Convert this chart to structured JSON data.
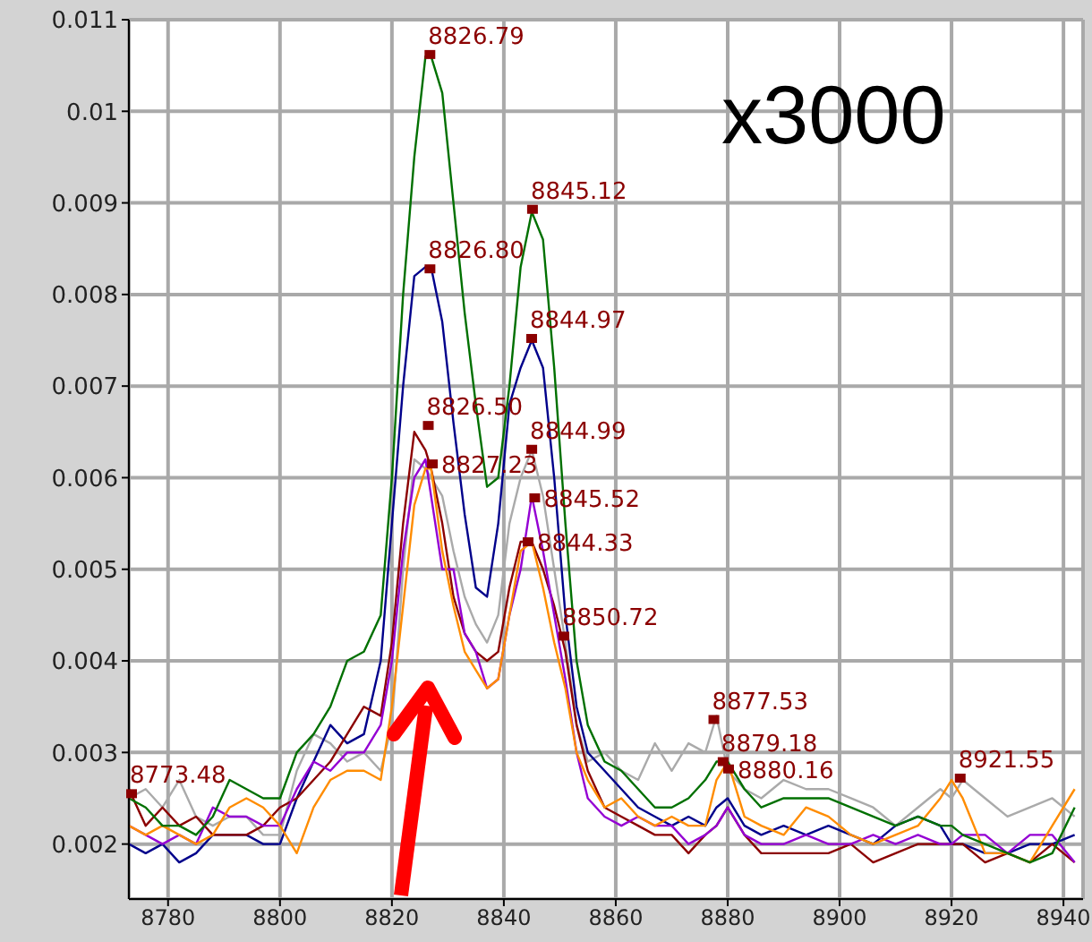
{
  "chart_data": {
    "type": "line",
    "x": [
      8773,
      8776,
      8779,
      8782,
      8785,
      8788,
      8791,
      8794,
      8797,
      8800,
      8803,
      8806,
      8809,
      8812,
      8815,
      8818,
      8820,
      8822,
      8824,
      8826,
      8827,
      8829,
      8831,
      8833,
      8835,
      8837,
      8839,
      8841,
      8843,
      8845,
      8847,
      8849,
      8851,
      8853,
      8855,
      8858,
      8861,
      8864,
      8867,
      8870,
      8873,
      8876,
      8878,
      8880,
      8883,
      8886,
      8890,
      8894,
      8898,
      8902,
      8906,
      8910,
      8914,
      8918,
      8920,
      8922,
      8926,
      8930,
      8934,
      8938,
      8942
    ],
    "series": [
      {
        "color": "#aaaaaa",
        "values": [
          0.0025,
          0.0026,
          0.0024,
          0.0027,
          0.0023,
          0.0022,
          0.0023,
          0.0023,
          0.0021,
          0.0021,
          0.0028,
          0.0032,
          0.0031,
          0.0029,
          0.003,
          0.0028,
          0.0033,
          0.005,
          0.0062,
          0.0061,
          0.006,
          0.0058,
          0.0052,
          0.0047,
          0.0044,
          0.0042,
          0.0045,
          0.0055,
          0.006,
          0.0063,
          0.0058,
          0.005,
          0.0042,
          0.0033,
          0.0029,
          0.003,
          0.0028,
          0.0027,
          0.0031,
          0.0028,
          0.0031,
          0.003,
          0.0034,
          0.0028,
          0.0026,
          0.0025,
          0.0027,
          0.0026,
          0.0026,
          0.0025,
          0.0024,
          0.0022,
          0.0024,
          0.0026,
          0.0025,
          0.0027,
          0.0025,
          0.0023,
          0.0024,
          0.0025,
          0.0023
        ]
      },
      {
        "color": "#00008b",
        "values": [
          0.002,
          0.0019,
          0.002,
          0.0018,
          0.0019,
          0.0021,
          0.0021,
          0.0021,
          0.002,
          0.002,
          0.0025,
          0.0029,
          0.0033,
          0.0031,
          0.0032,
          0.004,
          0.0055,
          0.007,
          0.0082,
          0.0083,
          0.0083,
          0.0077,
          0.0066,
          0.0056,
          0.0048,
          0.0047,
          0.0055,
          0.0068,
          0.0072,
          0.0075,
          0.0072,
          0.006,
          0.0045,
          0.0035,
          0.003,
          0.0028,
          0.0026,
          0.0024,
          0.0023,
          0.0022,
          0.0023,
          0.0022,
          0.0024,
          0.0025,
          0.0022,
          0.0021,
          0.0022,
          0.0021,
          0.0022,
          0.0021,
          0.002,
          0.0022,
          0.0023,
          0.0022,
          0.002,
          0.002,
          0.0019,
          0.0019,
          0.002,
          0.002,
          0.0021
        ]
      },
      {
        "color": "#8b0000",
        "values": [
          0.0026,
          0.0022,
          0.0024,
          0.0022,
          0.0023,
          0.0021,
          0.0021,
          0.0021,
          0.0022,
          0.0024,
          0.0025,
          0.0027,
          0.0029,
          0.0032,
          0.0035,
          0.0034,
          0.0042,
          0.0055,
          0.0065,
          0.0063,
          0.0061,
          0.0055,
          0.0047,
          0.0043,
          0.0041,
          0.004,
          0.0041,
          0.0048,
          0.0053,
          0.0053,
          0.005,
          0.0046,
          0.0041,
          0.0033,
          0.0028,
          0.0024,
          0.0023,
          0.0022,
          0.0021,
          0.0021,
          0.0019,
          0.0021,
          0.0022,
          0.0024,
          0.0021,
          0.0019,
          0.0019,
          0.0019,
          0.0019,
          0.002,
          0.0018,
          0.0019,
          0.002,
          0.002,
          0.002,
          0.002,
          0.0018,
          0.0019,
          0.0018,
          0.002,
          0.0018
        ]
      },
      {
        "color": "#9400d3",
        "values": [
          0.0022,
          0.0021,
          0.002,
          0.0021,
          0.002,
          0.0024,
          0.0023,
          0.0023,
          0.0022,
          0.0022,
          0.0026,
          0.0029,
          0.0028,
          0.003,
          0.003,
          0.0033,
          0.004,
          0.0052,
          0.006,
          0.0062,
          0.0058,
          0.005,
          0.005,
          0.0043,
          0.0041,
          0.0037,
          0.0038,
          0.0045,
          0.005,
          0.0058,
          0.0052,
          0.0045,
          0.0038,
          0.003,
          0.0025,
          0.0023,
          0.0022,
          0.0023,
          0.0022,
          0.0022,
          0.002,
          0.0021,
          0.0022,
          0.0024,
          0.0021,
          0.002,
          0.002,
          0.0021,
          0.002,
          0.002,
          0.0021,
          0.002,
          0.0021,
          0.002,
          0.002,
          0.0021,
          0.0021,
          0.0019,
          0.0021,
          0.0021,
          0.0018
        ]
      },
      {
        "color": "#ff8c00",
        "values": [
          0.0022,
          0.0021,
          0.0022,
          0.0021,
          0.002,
          0.0021,
          0.0024,
          0.0025,
          0.0024,
          0.0022,
          0.0019,
          0.0024,
          0.0027,
          0.0028,
          0.0028,
          0.0027,
          0.0035,
          0.0046,
          0.0057,
          0.0061,
          0.0061,
          0.0052,
          0.0046,
          0.0041,
          0.0039,
          0.0037,
          0.0038,
          0.0045,
          0.0052,
          0.0053,
          0.0048,
          0.0042,
          0.0037,
          0.003,
          0.0027,
          0.0024,
          0.0025,
          0.0023,
          0.0022,
          0.0023,
          0.0022,
          0.0022,
          0.0027,
          0.0029,
          0.0023,
          0.0022,
          0.0021,
          0.0024,
          0.0023,
          0.0021,
          0.002,
          0.0021,
          0.0022,
          0.0025,
          0.0027,
          0.0025,
          0.0019,
          0.0019,
          0.0018,
          0.0022,
          0.0026
        ]
      },
      {
        "color": "#007000",
        "values": [
          0.0025,
          0.0024,
          0.0022,
          0.0022,
          0.0021,
          0.0023,
          0.0027,
          0.0026,
          0.0025,
          0.0025,
          0.003,
          0.0032,
          0.0035,
          0.004,
          0.0041,
          0.0045,
          0.006,
          0.008,
          0.0095,
          0.0106,
          0.0106,
          0.0102,
          0.009,
          0.0078,
          0.0068,
          0.0059,
          0.006,
          0.007,
          0.0083,
          0.0089,
          0.0086,
          0.0072,
          0.0055,
          0.004,
          0.0033,
          0.0029,
          0.0028,
          0.0026,
          0.0024,
          0.0024,
          0.0025,
          0.0027,
          0.0029,
          0.0029,
          0.0026,
          0.0024,
          0.0025,
          0.0025,
          0.0025,
          0.0024,
          0.0023,
          0.0022,
          0.0023,
          0.0022,
          0.0022,
          0.0021,
          0.002,
          0.0019,
          0.0018,
          0.0019,
          0.0024
        ]
      }
    ],
    "xlim": [
      8773,
      8943.5
    ],
    "xticks": [
      8780,
      8800,
      8820,
      8840,
      8860,
      8880,
      8900,
      8920,
      8940
    ],
    "ylim": [
      0.0014,
      0.011
    ],
    "yticks": [
      0.002,
      0.003,
      0.004,
      0.005,
      0.006,
      0.007,
      0.008,
      0.009,
      0.01,
      0.011
    ],
    "grid": true,
    "legend": false,
    "marker": "none",
    "line_style": "solid",
    "annotations": [
      "x3000",
      {
        "text": "8826.79",
        "x": 8826.79,
        "y": 0.01062
      },
      {
        "text": "8845.12",
        "x": 8845.12,
        "y": 0.00893
      },
      {
        "text": "8826.80",
        "x": 8826.8,
        "y": 0.00828
      },
      {
        "text": "8844.97",
        "x": 8844.97,
        "y": 0.00752
      },
      {
        "text": "8826.50",
        "x": 8826.5,
        "y": 0.00657
      },
      {
        "text": "8844.99",
        "x": 8844.99,
        "y": 0.00631
      },
      {
        "text": "8827.23",
        "x": 8827.23,
        "y": 0.00615
      },
      {
        "text": "8845.52",
        "x": 8845.52,
        "y": 0.00578
      },
      {
        "text": "8844.33",
        "x": 8844.33,
        "y": 0.0053
      },
      {
        "text": "8850.72",
        "x": 8850.72,
        "y": 0.00427
      },
      {
        "text": "8877.53",
        "x": 8877.53,
        "y": 0.00336
      },
      {
        "text": "8879.18",
        "x": 8879.18,
        "y": 0.0029
      },
      {
        "text": "8880.16",
        "x": 8880.16,
        "y": 0.00282
      },
      {
        "text": "8921.55",
        "x": 8921.55,
        "y": 0.00272
      },
      {
        "text": "8773.48",
        "x": 8773.48,
        "y": 0.00255
      }
    ]
  }
}
